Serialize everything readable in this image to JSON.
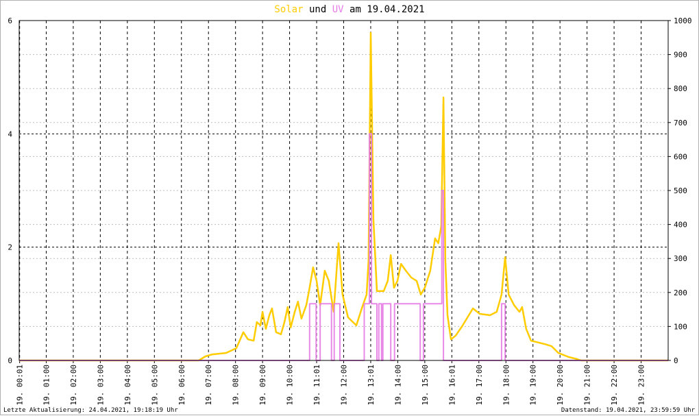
{
  "chart_data": {
    "type": "line",
    "title_parts": [
      "und",
      "am 19.04.2021"
    ],
    "footer_left": "Letzte Aktualisierung: 24.04.2021, 19:18:19 Uhr",
    "footer_right": "Datenstand: 19.04.2021, 23:59:59 Uhr",
    "xlim": [
      0,
      24
    ],
    "xticks": [
      {
        "value": 0.0167,
        "label": "19. 00:01"
      },
      {
        "value": 1,
        "label": "19. 01:00"
      },
      {
        "value": 2,
        "label": "19. 02:00"
      },
      {
        "value": 3,
        "label": "19. 03:00"
      },
      {
        "value": 4,
        "label": "19. 04:00"
      },
      {
        "value": 5,
        "label": "19. 05:00"
      },
      {
        "value": 6,
        "label": "19. 06:00"
      },
      {
        "value": 7,
        "label": "19. 07:00"
      },
      {
        "value": 8,
        "label": "19. 08:00"
      },
      {
        "value": 9,
        "label": "19. 09:00"
      },
      {
        "value": 10,
        "label": "19. 10:00"
      },
      {
        "value": 11,
        "label": "19. 11:01"
      },
      {
        "value": 12,
        "label": "19. 12:00"
      },
      {
        "value": 13,
        "label": "19. 13:01"
      },
      {
        "value": 14,
        "label": "19. 14:00"
      },
      {
        "value": 15,
        "label": "19. 15:00"
      },
      {
        "value": 16,
        "label": "19. 16:01"
      },
      {
        "value": 17,
        "label": "19. 17:00"
      },
      {
        "value": 18,
        "label": "19. 18:00"
      },
      {
        "value": 19,
        "label": "19. 19:00"
      },
      {
        "value": 20,
        "label": "19. 20:00"
      },
      {
        "value": 21,
        "label": "19. 21:00"
      },
      {
        "value": 22,
        "label": "19. 22:00"
      },
      {
        "value": 23,
        "label": "19. 23:00"
      }
    ],
    "ylim": [
      0,
      6
    ],
    "yticks": [
      0,
      2,
      4,
      6
    ],
    "y2lim": [
      0,
      1000
    ],
    "y2ticks": [
      0,
      100,
      200,
      300,
      400,
      500,
      600,
      700,
      800,
      900,
      1000
    ],
    "grid": true,
    "series": [
      {
        "name": "Solar",
        "color": "#ffcc00",
        "axis": "y2",
        "x": [
          0,
          6.64,
          6.89,
          7.15,
          7.65,
          8.03,
          8.29,
          8.46,
          8.67,
          8.79,
          8.92,
          9.0,
          9.12,
          9.25,
          9.35,
          9.5,
          9.68,
          9.81,
          9.93,
          10.04,
          10.19,
          10.31,
          10.44,
          10.62,
          10.74,
          10.87,
          11.0,
          11.13,
          11.3,
          11.45,
          11.63,
          11.81,
          11.96,
          12.16,
          12.47,
          12.67,
          12.85,
          12.92,
          13.0,
          13.1,
          13.23,
          13.48,
          13.63,
          13.74,
          13.86,
          13.99,
          14.12,
          14.3,
          14.5,
          14.7,
          14.85,
          15.0,
          15.2,
          15.38,
          15.5,
          15.61,
          15.69,
          15.76,
          15.84,
          15.97,
          16.14,
          16.4,
          16.78,
          17.03,
          17.41,
          17.66,
          17.84,
          17.97,
          18.1,
          18.3,
          18.5,
          18.6,
          18.75,
          18.93,
          19.44,
          19.69,
          19.94,
          20.32,
          20.63,
          20.78,
          24
        ],
        "values": [
          0,
          0,
          12,
          18,
          22,
          36,
          83,
          62,
          58,
          113,
          103,
          143,
          93,
          133,
          153,
          83,
          77,
          113,
          157,
          97,
          143,
          173,
          123,
          163,
          214,
          274,
          234,
          163,
          264,
          234,
          143,
          345,
          194,
          127,
          103,
          153,
          194,
          294,
          964,
          415,
          204,
          204,
          234,
          310,
          214,
          234,
          284,
          264,
          244,
          234,
          194,
          214,
          264,
          359,
          345,
          395,
          774,
          294,
          133,
          62,
          73,
          103,
          153,
          137,
          133,
          143,
          194,
          304,
          194,
          163,
          143,
          157,
          93,
          58,
          48,
          42,
          22,
          10,
          4,
          0,
          0
        ]
      },
      {
        "name": "UV",
        "color": "#e67ce6",
        "axis": "y",
        "x": [
          0,
          10.74,
          10.74,
          10.98,
          10.98,
          11.13,
          11.13,
          11.55,
          11.55,
          11.65,
          11.65,
          11.86,
          11.86,
          12.76,
          12.76,
          12.95,
          12.95,
          13.03,
          13.03,
          13.23,
          13.23,
          13.3,
          13.3,
          13.4,
          13.4,
          13.45,
          13.45,
          13.74,
          13.74,
          13.88,
          13.88,
          14.83,
          14.83,
          14.95,
          14.95,
          15.63,
          15.63,
          15.69,
          15.69,
          17.84,
          17.84,
          17.97,
          17.97,
          24
        ],
        "values": [
          0,
          0,
          1,
          1,
          0,
          0,
          1,
          1,
          0,
          0,
          1,
          1,
          0,
          0,
          1,
          1,
          4,
          4,
          1,
          1,
          0,
          0,
          1,
          1,
          0,
          0,
          1,
          1,
          0,
          0,
          1,
          1,
          0,
          0,
          1,
          1,
          3,
          3,
          0,
          0,
          1,
          1,
          0,
          0
        ]
      }
    ]
  }
}
